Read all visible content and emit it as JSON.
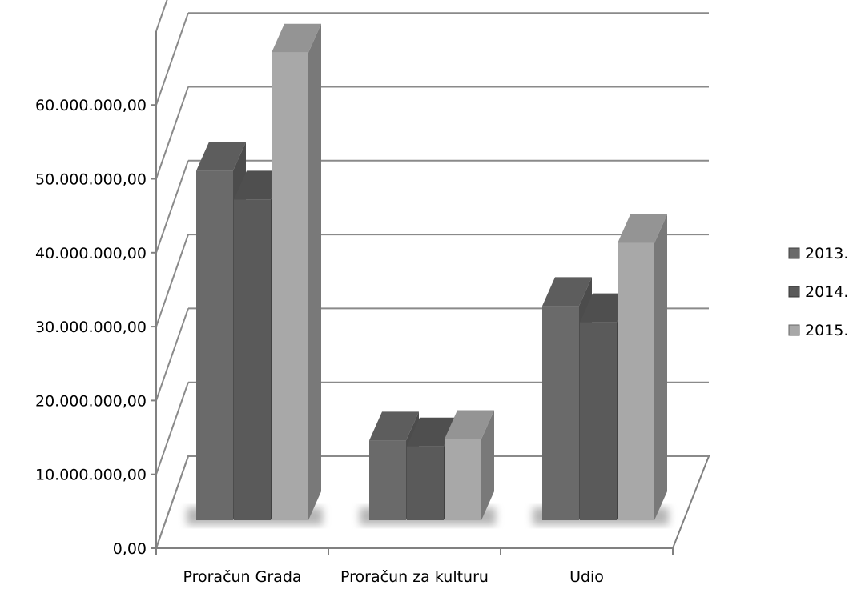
{
  "chart_data": {
    "type": "bar",
    "title": "",
    "xlabel": "",
    "ylabel": "",
    "categories": [
      "Proračun Grada",
      "Proračun za kulturu",
      "Udio"
    ],
    "series": [
      {
        "name": "2013.",
        "values": [
          47300000,
          10800000,
          29000000
        ],
        "color": "#6a6a6a"
      },
      {
        "name": "2014.",
        "values": [
          43400000,
          10000000,
          26800000
        ],
        "color": "#5a5a5a"
      },
      {
        "name": "2015.",
        "values": [
          63300000,
          11000000,
          37500000
        ],
        "color": "#a8a8a8"
      }
    ],
    "ylim": [
      0,
      70000000
    ],
    "yticks": [
      "0,00",
      "10.000.000,00",
      "20.000.000,00",
      "30.000.000,00",
      "40.000.000,00",
      "50.000.000,00",
      "60.000.000,00"
    ],
    "grid": true,
    "legend": "right",
    "style": "3d-clustered-column"
  }
}
